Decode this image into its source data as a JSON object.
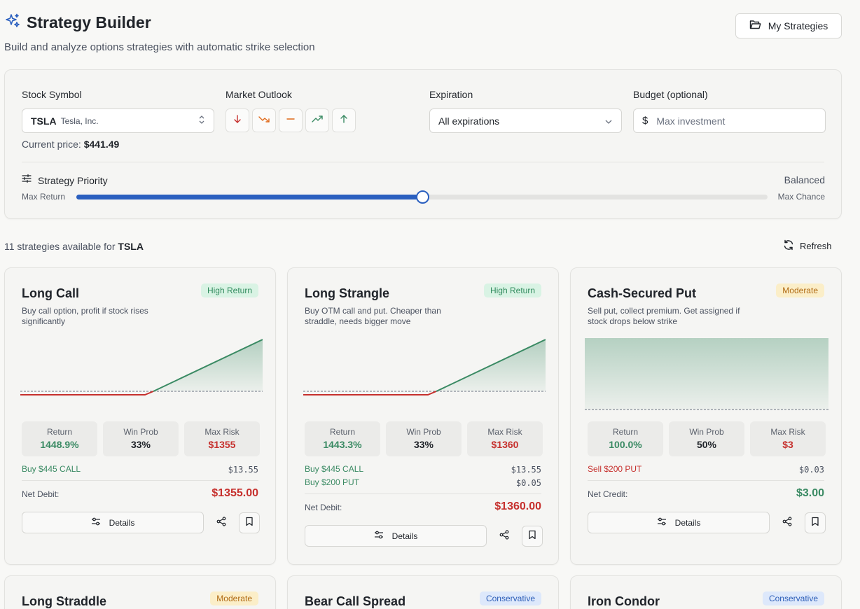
{
  "header": {
    "title": "Strategy Builder",
    "subtitle": "Build and analyze options strategies with automatic strike selection",
    "my_strategies_label": "My Strategies"
  },
  "panel": {
    "stock_symbol_label": "Stock Symbol",
    "ticker": "TSLA",
    "company": "Tesla, Inc.",
    "current_price_label": "Current price:",
    "current_price": "$441.49",
    "market_outlook_label": "Market Outlook",
    "expiration_label": "Expiration",
    "expiration_value": "All expirations",
    "budget_label": "Budget (optional)",
    "budget_placeholder": "Max investment",
    "priority_label": "Strategy Priority",
    "priority_value": "Balanced",
    "slider_left": "Max Return",
    "slider_right": "Max Chance",
    "slider_level": 0.5
  },
  "summary": {
    "count_text": "11 strategies available for",
    "ticker": "TSLA",
    "refresh_label": "Refresh"
  },
  "colors": {
    "accent": "#2a5fbf",
    "profit": "#3a8a63",
    "loss": "#c6302d"
  },
  "cards": [
    {
      "title": "Long Call",
      "badge": "High Return",
      "desc": "Buy call option, profit if stock rises significantly",
      "stats": {
        "return_label": "Return",
        "return": "1448.9%",
        "prob_label": "Win Prob",
        "prob": "33%",
        "risk_label": "Max Risk",
        "risk": "$1355"
      },
      "legs": [
        {
          "text": "Buy $445 CALL",
          "price": "$13.55"
        }
      ],
      "net_label": "Net Debit:",
      "net_value": "$1355.00",
      "details_label": "Details"
    },
    {
      "title": "Long Strangle",
      "badge": "High Return",
      "desc": "Buy OTM call and put. Cheaper than straddle, needs bigger move",
      "stats": {
        "return_label": "Return",
        "return": "1443.3%",
        "prob_label": "Win Prob",
        "prob": "33%",
        "risk_label": "Max Risk",
        "risk": "$1360"
      },
      "legs": [
        {
          "text": "Buy $445 CALL",
          "price": "$13.55"
        },
        {
          "text": "Buy $200 PUT",
          "price": "$0.05"
        }
      ],
      "net_label": "Net Debit:",
      "net_value": "$1360.00",
      "details_label": "Details"
    },
    {
      "title": "Cash-Secured Put",
      "badge": "Moderate",
      "desc": "Sell put, collect premium. Get assigned if stock drops below strike",
      "stats": {
        "return_label": "Return",
        "return": "100.0%",
        "prob_label": "Win Prob",
        "prob": "50%",
        "risk_label": "Max Risk",
        "risk": "$3"
      },
      "legs": [
        {
          "text": "Sell $200 PUT",
          "price": "$0.03"
        }
      ],
      "net_label": "Net Credit:",
      "net_value": "$3.00",
      "details_label": "Details"
    },
    {
      "title": "Long Straddle",
      "badge": "Moderate"
    },
    {
      "title": "Bear Call Spread",
      "badge": "Conservative"
    },
    {
      "title": "Iron Condor",
      "badge": "Conservative"
    }
  ]
}
